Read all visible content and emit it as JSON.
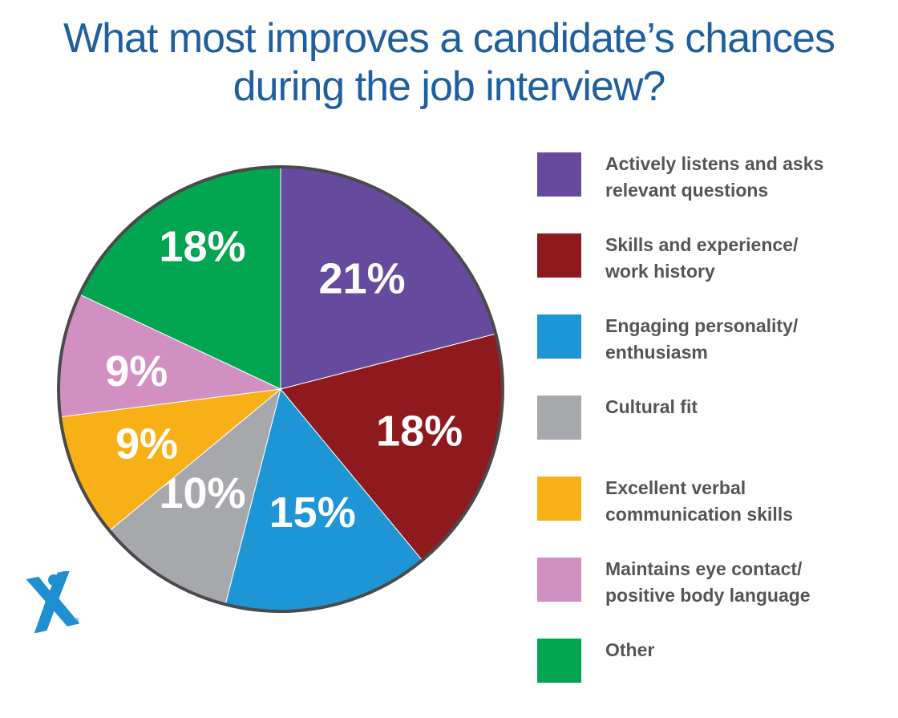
{
  "title_line1": "What most improves a candidate’s chances",
  "title_line2": "during the job interview?",
  "logo_icon": "express-x-logo",
  "chart_data": {
    "type": "pie",
    "title": "What most improves a candidate’s chances during the job interview?",
    "legend_position": "right",
    "slices": [
      {
        "label_line1": "Actively listens and asks",
        "label_line2": "relevant questions",
        "value": 21,
        "display": "21%",
        "color": "#654a9e"
      },
      {
        "label_line1": "Skills and experience/",
        "label_line2": "work history",
        "value": 18,
        "display": "18%",
        "color": "#8e1a1d"
      },
      {
        "label_line1": "Engaging personality/",
        "label_line2": "enthusiasm",
        "value": 15,
        "display": "15%",
        "color": "#1e95d4"
      },
      {
        "label_line1": "Cultural fit",
        "label_line2": "",
        "value": 10,
        "display": "10%",
        "color": "#a7a8ab"
      },
      {
        "label_line1": "Excellent verbal",
        "label_line2": "communication skills",
        "value": 9,
        "display": "9%",
        "color": "#f8b017"
      },
      {
        "label_line1": "Maintains eye contact/",
        "label_line2": "positive body language",
        "value": 9,
        "display": "9%",
        "color": "#d18fc2"
      },
      {
        "label_line1": "Other",
        "label_line2": "",
        "value": 18,
        "display": "18%",
        "color": "#02a550"
      }
    ]
  }
}
